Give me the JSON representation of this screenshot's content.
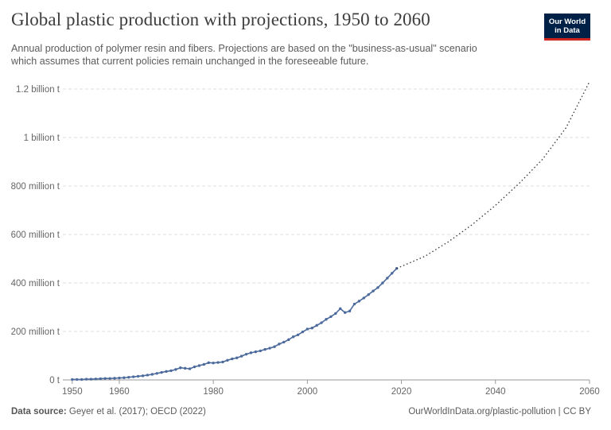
{
  "header": {
    "title": "Global plastic production with projections, 1950 to 2060",
    "subtitle": "Annual production of polymer resin and fibers. Projections are based on the \"business-as-usual\" scenario which assumes that current policies remain unchanged in the foreseeable future."
  },
  "logo": {
    "line1": "Our World",
    "line2": "in Data"
  },
  "footer": {
    "source_label": "Data source:",
    "source_text": "Geyer et al. (2017); OECD (2022)",
    "url_license": "OurWorldInData.org/plastic-pollution | CC BY"
  },
  "colors": {
    "series": "#4c6a9c",
    "grid": "#dddddd",
    "axis_text": "#666666",
    "logo_bg": "#002147",
    "logo_accent": "#ce261e"
  },
  "chart_data": {
    "type": "line",
    "title": "Global plastic production with projections, 1950 to 2060",
    "xlabel": "",
    "ylabel": "",
    "xlim": [
      1948,
      2060
    ],
    "ylim": [
      0,
      1200000000
    ],
    "grid": true,
    "x_ticks": [
      1950,
      1960,
      1980,
      2000,
      2020,
      2040,
      2060
    ],
    "x_tick_labels": [
      "1950",
      "1960",
      "1980",
      "2000",
      "2020",
      "2040",
      "2060"
    ],
    "y_ticks": [
      0,
      200000000,
      400000000,
      600000000,
      800000000,
      1000000000,
      1200000000
    ],
    "y_tick_labels": [
      "0 t",
      "200 million t",
      "400 million t",
      "600 million t",
      "800 million t",
      "1 billion t",
      "1.2 billion t"
    ],
    "series": [
      {
        "style": "solid",
        "markers": true,
        "x": [
          1950,
          1951,
          1952,
          1953,
          1954,
          1955,
          1956,
          1957,
          1958,
          1959,
          1960,
          1961,
          1962,
          1963,
          1964,
          1965,
          1966,
          1967,
          1968,
          1969,
          1970,
          1971,
          1972,
          1973,
          1974,
          1975,
          1976,
          1977,
          1978,
          1979,
          1980,
          1981,
          1982,
          1983,
          1984,
          1985,
          1986,
          1987,
          1988,
          1989,
          1990,
          1991,
          1992,
          1993,
          1994,
          1995,
          1996,
          1997,
          1998,
          1999,
          2000,
          2001,
          2002,
          2003,
          2004,
          2005,
          2006,
          2007,
          2008,
          2009,
          2010,
          2011,
          2012,
          2013,
          2014,
          2015,
          2016,
          2017,
          2018,
          2019
        ],
        "values": [
          2000000,
          2000000,
          2000000,
          3000000,
          3000000,
          4000000,
          5000000,
          6000000,
          6000000,
          7000000,
          8000000,
          9000000,
          11000000,
          13000000,
          15000000,
          17000000,
          20000000,
          23000000,
          27000000,
          31000000,
          35000000,
          38000000,
          43000000,
          50000000,
          48000000,
          46000000,
          54000000,
          59000000,
          64000000,
          71000000,
          70000000,
          72000000,
          74000000,
          81000000,
          87000000,
          91000000,
          98000000,
          106000000,
          112000000,
          116000000,
          120000000,
          126000000,
          131000000,
          137000000,
          148000000,
          156000000,
          166000000,
          178000000,
          186000000,
          198000000,
          210000000,
          214000000,
          225000000,
          236000000,
          250000000,
          261000000,
          274000000,
          294000000,
          278000000,
          284000000,
          313000000,
          325000000,
          338000000,
          352000000,
          367000000,
          381000000,
          400000000,
          420000000,
          440000000,
          460000000
        ]
      },
      {
        "style": "dotted",
        "markers": false,
        "x": [
          2019,
          2025,
          2030,
          2035,
          2040,
          2045,
          2050,
          2055,
          2060
        ],
        "values": [
          460000000,
          510000000,
          570000000,
          640000000,
          720000000,
          810000000,
          910000000,
          1040000000,
          1230000000
        ]
      }
    ]
  }
}
